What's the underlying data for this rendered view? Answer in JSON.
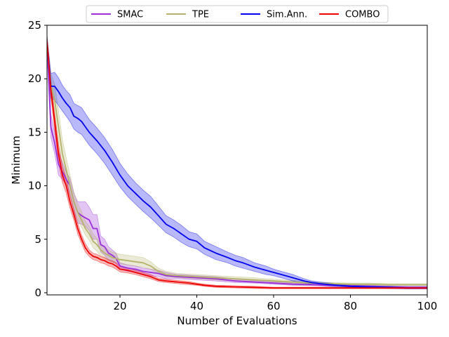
{
  "chart_data": {
    "type": "line",
    "title": "",
    "xlabel": "Number of Evaluations",
    "ylabel": "Minimum",
    "xlim": [
      1,
      100
    ],
    "ylim": [
      -0.2,
      25
    ],
    "xticks": [
      20,
      40,
      60,
      80,
      100
    ],
    "yticks": [
      0,
      5,
      10,
      15,
      20,
      25
    ],
    "xtick_labels": [
      "20",
      "40",
      "60",
      "80",
      "100"
    ],
    "ytick_labels": [
      "0",
      "5",
      "10",
      "15",
      "20",
      "25"
    ],
    "grid": false,
    "legend_position": "top-center",
    "series": [
      {
        "name": "SMAC",
        "color": "#9b30d9",
        "x": [
          1,
          2,
          3,
          4,
          5,
          6,
          7,
          8,
          9,
          10,
          11,
          12,
          13,
          14,
          15,
          16,
          17,
          18,
          19,
          20,
          22,
          24,
          26,
          28,
          30,
          32,
          35,
          40,
          45,
          50,
          55,
          60,
          65,
          70,
          75,
          80,
          85,
          90,
          95,
          100
        ],
        "mean": [
          23.5,
          15.5,
          14.0,
          12.0,
          11.3,
          10.6,
          10.0,
          8.5,
          7.5,
          7.2,
          7.0,
          6.8,
          6.0,
          6.0,
          4.5,
          4.3,
          3.7,
          3.5,
          3.2,
          2.5,
          2.3,
          2.2,
          2.0,
          1.9,
          1.8,
          1.6,
          1.5,
          1.4,
          1.3,
          1.1,
          1.0,
          0.9,
          0.8,
          0.75,
          0.7,
          0.65,
          0.6,
          0.55,
          0.5,
          0.5
        ],
        "lower": [
          22.5,
          14.5,
          13.0,
          11.0,
          10.6,
          10.0,
          9.2,
          7.6,
          6.5,
          6.4,
          6.2,
          5.8,
          5.0,
          5.0,
          3.8,
          3.5,
          3.0,
          2.9,
          2.7,
          2.2,
          2.0,
          1.9,
          1.7,
          1.6,
          1.5,
          1.3,
          1.3,
          1.2,
          1.1,
          0.95,
          0.9,
          0.8,
          0.7,
          0.65,
          0.6,
          0.55,
          0.5,
          0.45,
          0.4,
          0.4
        ],
        "upper": [
          24.0,
          16.7,
          15.0,
          13.2,
          12.2,
          11.3,
          10.7,
          9.3,
          8.5,
          8.5,
          8.5,
          8.0,
          7.3,
          7.3,
          5.3,
          5.0,
          4.3,
          4.0,
          3.7,
          2.8,
          2.6,
          2.5,
          2.3,
          2.2,
          2.1,
          1.9,
          1.7,
          1.6,
          1.5,
          1.3,
          1.15,
          1.05,
          0.9,
          0.85,
          0.8,
          0.75,
          0.7,
          0.65,
          0.6,
          0.6
        ]
      },
      {
        "name": "TPE",
        "color": "#b5b36b",
        "x": [
          1,
          2,
          3,
          4,
          5,
          6,
          7,
          8,
          9,
          10,
          11,
          12,
          13,
          14,
          15,
          16,
          17,
          18,
          20,
          22,
          24,
          26,
          28,
          30,
          32,
          35,
          40,
          45,
          50,
          55,
          60,
          65,
          70,
          75,
          80,
          85,
          90,
          95,
          100
        ],
        "mean": [
          23.5,
          19.5,
          18.0,
          15.5,
          13.0,
          11.5,
          10.0,
          8.5,
          7.5,
          6.8,
          6.0,
          5.5,
          4.8,
          4.5,
          4.0,
          3.7,
          3.5,
          3.3,
          3.1,
          3.0,
          2.9,
          2.8,
          2.5,
          2.0,
          1.7,
          1.6,
          1.5,
          1.4,
          1.3,
          1.2,
          1.1,
          1.0,
          0.9,
          0.85,
          0.8,
          0.8,
          0.75,
          0.75,
          0.75
        ],
        "lower": [
          22.5,
          18.0,
          16.5,
          14.0,
          11.8,
          10.5,
          9.2,
          7.8,
          6.8,
          6.1,
          5.4,
          4.9,
          4.2,
          3.9,
          3.4,
          3.2,
          3.0,
          2.9,
          2.7,
          2.6,
          2.5,
          2.4,
          2.2,
          1.8,
          1.5,
          1.4,
          1.3,
          1.2,
          1.1,
          1.0,
          0.95,
          0.85,
          0.8,
          0.75,
          0.7,
          0.7,
          0.65,
          0.65,
          0.65
        ],
        "upper": [
          24.0,
          20.5,
          19.5,
          17.0,
          14.3,
          12.6,
          11.0,
          9.4,
          8.3,
          7.6,
          6.7,
          6.2,
          5.5,
          5.1,
          4.6,
          4.3,
          4.0,
          3.8,
          3.6,
          3.5,
          3.4,
          3.3,
          2.9,
          2.3,
          2.0,
          1.8,
          1.7,
          1.6,
          1.5,
          1.4,
          1.25,
          1.15,
          1.0,
          0.95,
          0.9,
          0.9,
          0.85,
          0.85,
          0.85
        ]
      },
      {
        "name": "Sim.Ann.",
        "color": "#0000ee",
        "x": [
          1,
          2,
          3,
          4,
          5,
          6,
          7,
          8,
          9,
          10,
          12,
          14,
          16,
          18,
          20,
          22,
          24,
          26,
          28,
          30,
          32,
          34,
          36,
          38,
          40,
          42,
          45,
          48,
          50,
          52,
          55,
          58,
          60,
          62,
          65,
          68,
          70,
          72,
          75,
          78,
          80,
          85,
          90,
          95,
          100
        ],
        "mean": [
          23.5,
          19.3,
          19.3,
          18.8,
          18.2,
          17.7,
          17.3,
          16.5,
          16.3,
          16.0,
          15.0,
          14.2,
          13.3,
          12.2,
          11.0,
          10.0,
          9.3,
          8.6,
          8.0,
          7.2,
          6.4,
          6.0,
          5.5,
          5.0,
          4.8,
          4.2,
          3.7,
          3.3,
          3.0,
          2.8,
          2.4,
          2.1,
          1.9,
          1.7,
          1.4,
          1.1,
          0.95,
          0.85,
          0.75,
          0.65,
          0.6,
          0.55,
          0.5,
          0.45,
          0.45
        ],
        "lower": [
          22.5,
          18.2,
          18.0,
          17.5,
          17.0,
          16.5,
          16.0,
          15.3,
          15.0,
          14.8,
          13.8,
          13.0,
          12.1,
          11.0,
          9.9,
          9.0,
          8.3,
          7.6,
          7.0,
          6.3,
          5.6,
          5.2,
          4.7,
          4.3,
          4.1,
          3.6,
          3.1,
          2.8,
          2.5,
          2.3,
          2.0,
          1.7,
          1.6,
          1.4,
          1.1,
          0.9,
          0.8,
          0.7,
          0.6,
          0.55,
          0.5,
          0.45,
          0.4,
          0.35,
          0.35
        ],
        "upper": [
          24.0,
          20.5,
          20.6,
          20.1,
          19.4,
          18.9,
          18.5,
          17.7,
          17.5,
          17.3,
          16.2,
          15.4,
          14.5,
          13.4,
          12.1,
          11.1,
          10.3,
          9.6,
          9.0,
          8.1,
          7.2,
          6.8,
          6.3,
          5.7,
          5.5,
          4.8,
          4.3,
          3.8,
          3.5,
          3.3,
          2.8,
          2.5,
          2.2,
          2.0,
          1.7,
          1.3,
          1.1,
          1.0,
          0.9,
          0.75,
          0.7,
          0.65,
          0.6,
          0.55,
          0.55
        ]
      },
      {
        "name": "COMBO",
        "color": "#ee0000",
        "x": [
          1,
          2,
          3,
          4,
          5,
          6,
          7,
          8,
          9,
          10,
          11,
          12,
          13,
          14,
          15,
          16,
          17,
          18,
          19,
          20,
          22,
          24,
          26,
          28,
          30,
          32,
          35,
          38,
          40,
          42,
          45,
          50,
          55,
          60,
          65,
          70,
          75,
          80,
          85,
          90,
          95,
          100
        ],
        "mean": [
          23.5,
          19.0,
          16.0,
          13.0,
          11.0,
          10.0,
          8.5,
          7.3,
          6.0,
          5.0,
          4.2,
          3.7,
          3.4,
          3.3,
          3.1,
          3.0,
          2.8,
          2.7,
          2.5,
          2.2,
          2.1,
          1.9,
          1.7,
          1.5,
          1.2,
          1.1,
          1.0,
          0.9,
          0.8,
          0.7,
          0.6,
          0.55,
          0.5,
          0.45,
          0.45,
          0.45,
          0.45,
          0.45,
          0.45,
          0.45,
          0.45,
          0.45
        ],
        "lower": [
          22.8,
          18.3,
          15.2,
          12.2,
          10.3,
          9.3,
          7.9,
          6.8,
          5.5,
          4.6,
          3.8,
          3.4,
          3.1,
          3.0,
          2.8,
          2.7,
          2.5,
          2.4,
          2.2,
          1.95,
          1.85,
          1.7,
          1.5,
          1.3,
          1.05,
          0.95,
          0.85,
          0.75,
          0.7,
          0.6,
          0.5,
          0.45,
          0.4,
          0.38,
          0.38,
          0.38,
          0.38,
          0.38,
          0.38,
          0.38,
          0.38,
          0.38
        ],
        "upper": [
          24.0,
          19.8,
          16.8,
          13.8,
          11.8,
          10.7,
          9.1,
          7.8,
          6.5,
          5.4,
          4.6,
          4.0,
          3.7,
          3.6,
          3.4,
          3.3,
          3.1,
          3.0,
          2.8,
          2.45,
          2.35,
          2.1,
          1.9,
          1.7,
          1.35,
          1.25,
          1.15,
          1.05,
          0.9,
          0.8,
          0.7,
          0.65,
          0.6,
          0.52,
          0.52,
          0.52,
          0.52,
          0.52,
          0.52,
          0.52,
          0.52,
          0.52
        ]
      }
    ]
  }
}
